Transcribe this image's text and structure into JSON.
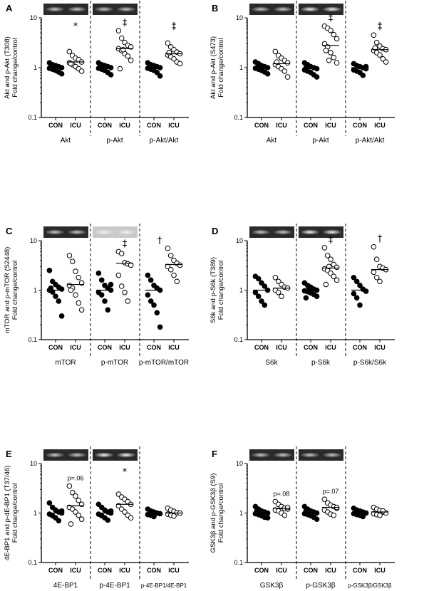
{
  "chart_data": [
    {
      "type": "scatter",
      "panel_letter": "A",
      "ylabel_lines": [
        "Akt and p-Akt (T308)",
        "Fold change/control"
      ],
      "yscale": "log",
      "ylim": [
        0.1,
        10
      ],
      "yticks": [
        "10",
        "1",
        "0.1"
      ],
      "group_labels": [
        "CON",
        "ICU"
      ],
      "blot_strip": true,
      "medians": [
        1.0,
        1.3,
        1.0,
        2.4,
        1.0,
        1.9
      ],
      "groups": [
        {
          "category": "Akt",
          "con": [
            1.25,
            1.15,
            1.1,
            1.05,
            1.0,
            0.97,
            0.93,
            0.88,
            0.82,
            0.75,
            1.05
          ],
          "icu": [
            2.1,
            1.75,
            1.55,
            1.45,
            1.3,
            1.25,
            1.15,
            1.05,
            0.95,
            0.85,
            1.2
          ],
          "annotation": "*"
        },
        {
          "category": "p-Akt",
          "con": [
            1.25,
            1.15,
            1.1,
            1.05,
            1.0,
            0.97,
            0.93,
            0.88,
            0.8,
            0.72,
            1.0
          ],
          "icu": [
            5.5,
            3.9,
            3.2,
            2.8,
            2.6,
            2.4,
            2.2,
            1.9,
            1.7,
            1.4,
            0.95,
            2.3
          ],
          "annotation": "‡"
        },
        {
          "category": "p-Akt/Akt",
          "con": [
            1.25,
            1.15,
            1.1,
            1.05,
            1.0,
            0.97,
            0.93,
            0.88,
            0.8,
            0.68,
            1.0
          ],
          "icu": [
            3.1,
            2.6,
            2.3,
            2.05,
            1.9,
            1.8,
            1.65,
            1.5,
            1.3,
            1.2,
            2.0
          ],
          "annotation": "‡"
        }
      ]
    },
    {
      "type": "scatter",
      "panel_letter": "B",
      "ylabel_lines": [
        "Akt and p-Akt (S473)",
        "Fold change/control"
      ],
      "yscale": "log",
      "ylim": [
        0.1,
        10
      ],
      "yticks": [
        "10",
        "1",
        "0.1"
      ],
      "group_labels": [
        "CON",
        "ICU"
      ],
      "blot_strip": true,
      "medians": [
        1.0,
        1.2,
        0.95,
        2.8,
        1.0,
        2.3
      ],
      "groups": [
        {
          "category": "Akt",
          "con": [
            1.3,
            1.2,
            1.1,
            1.05,
            1.0,
            0.97,
            0.93,
            0.88,
            0.82,
            0.75,
            1.0
          ],
          "icu": [
            2.1,
            1.75,
            1.55,
            1.4,
            1.25,
            1.15,
            1.05,
            0.95,
            0.85,
            0.65,
            1.3
          ],
          "annotation": ""
        },
        {
          "category": "p-Akt",
          "con": [
            1.25,
            1.15,
            1.05,
            1.0,
            0.95,
            0.9,
            0.85,
            0.8,
            0.72,
            0.65,
            1.0
          ],
          "icu": [
            6.8,
            6.2,
            5.6,
            4.6,
            3.8,
            3.0,
            2.6,
            2.0,
            1.6,
            1.25,
            2.2,
            1.4
          ],
          "annotation": "‡"
        },
        {
          "category": "p-Akt/Akt",
          "con": [
            1.2,
            1.1,
            1.05,
            1.0,
            0.95,
            0.9,
            0.85,
            0.8,
            0.7,
            1.05
          ],
          "icu": [
            4.5,
            3.2,
            2.7,
            2.4,
            2.3,
            2.2,
            2.0,
            1.8,
            1.5,
            1.3,
            2.5
          ],
          "annotation": "‡"
        }
      ]
    },
    {
      "type": "scatter",
      "panel_letter": "C",
      "ylabel_lines": [
        "mTOR and p-mTOR (S2448)",
        "Fold change/control"
      ],
      "yscale": "log",
      "ylim": [
        0.1,
        10
      ],
      "yticks": [
        "10",
        "1",
        "0.1"
      ],
      "group_labels": [
        "CON",
        "ICU"
      ],
      "blot_strip": true,
      "medians": [
        1.0,
        1.3,
        1.0,
        3.5,
        1.0,
        3.3
      ],
      "groups": [
        {
          "category": "mTOR",
          "con": [
            2.5,
            1.5,
            1.3,
            1.15,
            1.05,
            1.0,
            0.92,
            0.75,
            0.6,
            0.3,
            1.1
          ],
          "icu": [
            5.0,
            3.8,
            2.4,
            1.8,
            1.4,
            1.25,
            1.1,
            0.8,
            0.55,
            0.4,
            1.0
          ],
          "annotation": ""
        },
        {
          "category": "p-mTOR",
          "con": [
            2.2,
            1.6,
            1.25,
            1.1,
            1.0,
            0.9,
            0.8,
            0.6,
            0.4,
            1.3
          ],
          "icu": [
            6.0,
            5.5,
            3.6,
            3.4,
            3.2,
            2.0,
            1.2,
            0.9,
            0.6
          ],
          "annotation": "‡"
        },
        {
          "category": "p-mTOR/mTOR",
          "con": [
            2.0,
            1.6,
            1.25,
            1.1,
            1.0,
            0.8,
            0.6,
            0.5,
            0.35,
            0.18
          ],
          "icu": [
            7.0,
            5.0,
            4.0,
            3.5,
            3.2,
            3.0,
            2.6,
            2.0,
            1.5
          ],
          "annotation": "†"
        }
      ]
    },
    {
      "type": "scatter",
      "panel_letter": "D",
      "ylabel_lines": [
        "S6k and p-S6k (T389)",
        "Fold change/control"
      ],
      "yscale": "log",
      "ylim": [
        0.1,
        10
      ],
      "yticks": [
        "10",
        "1",
        "0.1"
      ],
      "group_labels": [
        "CON",
        "ICU"
      ],
      "blot_strip": true,
      "medians": [
        1.0,
        1.1,
        1.0,
        2.8,
        1.0,
        2.6
      ],
      "groups": [
        {
          "category": "S6k",
          "con": [
            1.9,
            1.7,
            1.4,
            1.2,
            1.0,
            0.9,
            0.75,
            0.6,
            0.5
          ],
          "icu": [
            1.8,
            1.5,
            1.3,
            1.15,
            1.1,
            1.0,
            0.9,
            0.75
          ],
          "annotation": ""
        },
        {
          "category": "p-S6k",
          "con": [
            1.4,
            1.25,
            1.15,
            1.05,
            1.0,
            0.97,
            0.93,
            0.88,
            0.82,
            0.75,
            0.7,
            1.1
          ],
          "icu": [
            7.2,
            5.0,
            4.2,
            3.3,
            2.9,
            2.7,
            2.5,
            2.2,
            1.9,
            1.6,
            1.3,
            3.0
          ],
          "annotation": "‡"
        },
        {
          "category": "p-S6k/S6k",
          "con": [
            1.8,
            1.5,
            1.25,
            1.05,
            0.95,
            0.85,
            0.7,
            0.5
          ],
          "icu": [
            7.5,
            4.2,
            3.0,
            2.8,
            2.6,
            2.3,
            1.8,
            1.5
          ],
          "annotation": "†"
        }
      ]
    },
    {
      "type": "scatter",
      "panel_letter": "E",
      "ylabel_lines": [
        "4E-BP1 and p-4E-BP1 (T37/46)",
        "Fold change/control"
      ],
      "yscale": "log",
      "ylim": [
        0.1,
        10
      ],
      "yticks": [
        "10",
        "1",
        "0.1"
      ],
      "group_labels": [
        "CON",
        "ICU"
      ],
      "blot_strip": true,
      "medians": [
        1.0,
        1.4,
        1.0,
        1.5,
        1.0,
        1.0
      ],
      "groups": [
        {
          "category": "4E-BP1",
          "con": [
            1.6,
            1.3,
            1.15,
            1.05,
            1.0,
            0.95,
            0.88,
            0.8,
            0.7,
            1.1
          ],
          "icu": [
            3.5,
            2.6,
            2.2,
            1.8,
            1.5,
            1.3,
            1.2,
            1.05,
            0.9,
            0.75,
            0.6
          ],
          "annotation": "p=.06"
        },
        {
          "category": "p-4E-BP1",
          "con": [
            1.5,
            1.3,
            1.15,
            1.05,
            1.0,
            0.95,
            0.88,
            0.8,
            0.72,
            1.1
          ],
          "icu": [
            2.4,
            2.1,
            1.9,
            1.7,
            1.5,
            1.4,
            1.2,
            1.05,
            0.9,
            0.8
          ],
          "annotation": "*"
        },
        {
          "category": "p-4E-BP1/4E-BP1",
          "con": [
            1.2,
            1.1,
            1.05,
            1.0,
            0.97,
            0.93,
            0.9,
            0.85,
            1.0
          ],
          "icu": [
            1.25,
            1.15,
            1.08,
            1.02,
            1.0,
            0.95,
            0.9,
            0.87
          ],
          "annotation": ""
        }
      ]
    },
    {
      "type": "scatter",
      "panel_letter": "F",
      "ylabel_lines": [
        "GSK3β and p-GSK3β (S9)",
        "Fold change/control"
      ],
      "yscale": "log",
      "ylim": [
        0.1,
        10
      ],
      "yticks": [
        "10",
        "1",
        "0.1"
      ],
      "group_labels": [
        "CON",
        "ICU"
      ],
      "blot_strip": true,
      "medians": [
        1.0,
        1.25,
        1.0,
        1.3,
        1.0,
        1.05
      ],
      "groups": [
        {
          "category": "GSK3β",
          "con": [
            1.35,
            1.2,
            1.1,
            1.05,
            1.0,
            0.97,
            0.93,
            0.88,
            0.82,
            0.8,
            1.1
          ],
          "icu": [
            1.7,
            1.5,
            1.35,
            1.25,
            1.2,
            1.15,
            1.1,
            1.0,
            0.9,
            1.3
          ],
          "annotation": "p=.08"
        },
        {
          "category": "p-GSK3β",
          "con": [
            1.35,
            1.2,
            1.1,
            1.05,
            1.0,
            0.97,
            0.93,
            0.88,
            0.82,
            0.75,
            1.1
          ],
          "icu": [
            1.9,
            1.6,
            1.45,
            1.35,
            1.25,
            1.15,
            1.05,
            0.95,
            0.9,
            1.3
          ],
          "annotation": "p=.07"
        },
        {
          "category": "p-GSK3β/GSK3β",
          "con": [
            1.25,
            1.15,
            1.1,
            1.05,
            1.0,
            0.97,
            0.93,
            0.9,
            0.85,
            1.0
          ],
          "icu": [
            1.3,
            1.2,
            1.12,
            1.05,
            1.0,
            0.97,
            0.93,
            0.9,
            1.1
          ],
          "annotation": ""
        }
      ]
    }
  ]
}
